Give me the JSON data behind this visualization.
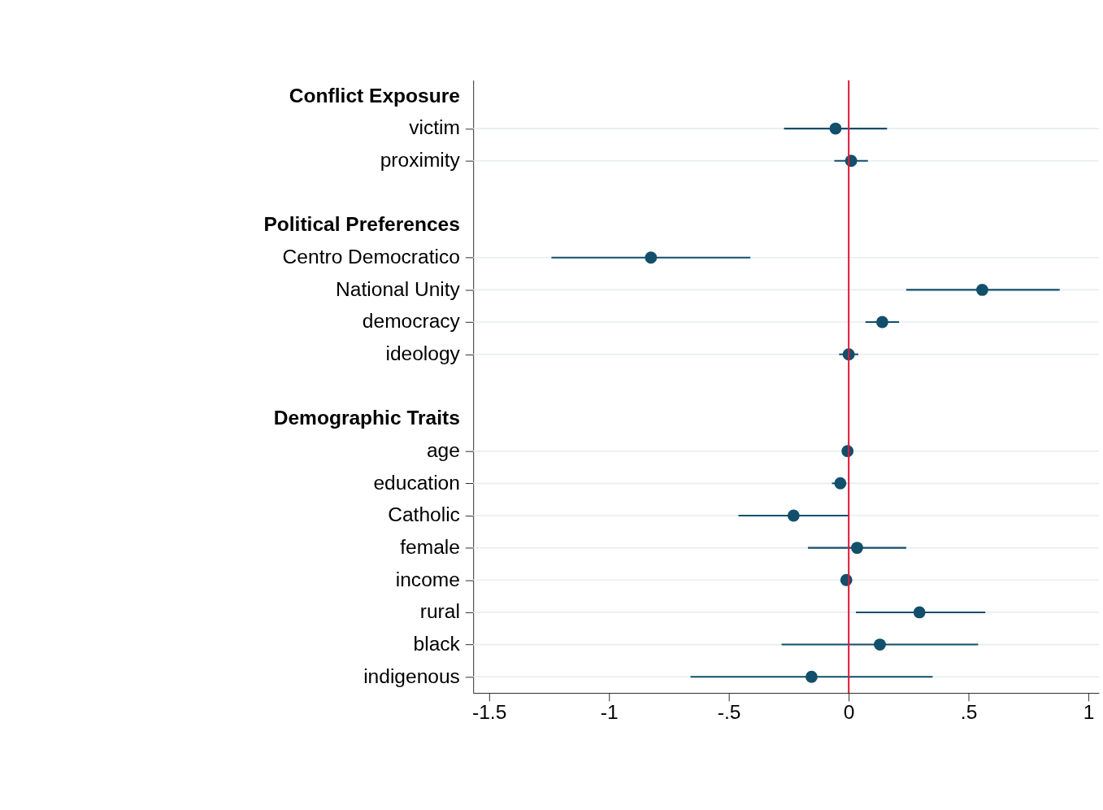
{
  "chart_data": {
    "type": "scatter",
    "categories": [
      "Conflict Exposure",
      "victim",
      "proximity",
      null,
      "Political Preferences",
      "Centro Democratico",
      "National Unity",
      "democracy",
      "ideology",
      null,
      "Demographic Traits",
      "age",
      "education",
      "Catholic",
      "female",
      "income",
      "rural",
      "black",
      "indigenous"
    ],
    "series": [
      {
        "color": "#124f6b",
        "values": [
          null,
          -0.055,
          0.01,
          null,
          null,
          -0.825,
          0.557,
          0.14,
          0.0,
          null,
          null,
          -0.005,
          -0.035,
          -0.23,
          0.035,
          -0.01,
          0.295,
          0.13,
          -0.155
        ],
        "errors": [
          null,
          [
            -0.27,
            0.16
          ],
          [
            -0.06,
            0.08
          ],
          null,
          null,
          [
            -1.24,
            -0.41
          ],
          [
            0.24,
            0.88
          ],
          [
            0.07,
            0.21
          ],
          [
            -0.04,
            0.04
          ],
          null,
          null,
          [
            -0.01,
            0.0
          ],
          [
            -0.07,
            -0.01
          ],
          [
            -0.46,
            0.0
          ],
          [
            -0.17,
            0.24
          ],
          [
            -0.02,
            0.0
          ],
          [
            0.03,
            0.57
          ],
          [
            -0.28,
            0.54
          ],
          [
            -0.66,
            0.35
          ]
        ]
      }
    ],
    "xlim": [
      -1.566,
      1.044
    ],
    "xticks": [
      {
        "value": -1.5,
        "label": "-1.5"
      },
      {
        "value": -1,
        "label": "-1"
      },
      {
        "value": -0.5,
        "label": "-.5"
      },
      {
        "value": 0,
        "label": "0"
      },
      {
        "value": 0.5,
        "label": ".5"
      },
      {
        "value": 1,
        "label": "1"
      }
    ],
    "orientation": "horizontal",
    "ref_lines": [
      {
        "axis": "x",
        "value": 0,
        "color": "#e0193a"
      }
    ],
    "grid": "y",
    "marker": "circle"
  }
}
